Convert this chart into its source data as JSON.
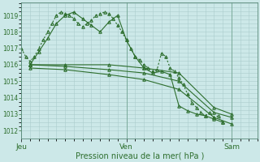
{
  "bg_color": "#cce8e8",
  "grid_color": "#aacccc",
  "line_color": "#2d6e2d",
  "marker_color": "#2d6e2d",
  "xlabel": "Pression niveau de la mer( hPa )",
  "xtick_labels": [
    "Jeu",
    "Ven",
    "Sam"
  ],
  "xtick_positions": [
    0,
    48,
    96
  ],
  "xlim": [
    0,
    108
  ],
  "ylim": [
    1011.5,
    1019.8
  ],
  "yticks": [
    1012,
    1013,
    1014,
    1015,
    1016,
    1017,
    1018,
    1019
  ],
  "series": [
    {
      "x": [
        0,
        2,
        4,
        6,
        8,
        10,
        12,
        14,
        16,
        18,
        20,
        22,
        24,
        26,
        28,
        30,
        32,
        34,
        36,
        38,
        40,
        42,
        44,
        46,
        48,
        50,
        52,
        54,
        56,
        58,
        60,
        62,
        64,
        66,
        68,
        70,
        72,
        74,
        76,
        78,
        80,
        82,
        84,
        86,
        88,
        90,
        92
      ],
      "y": [
        1017.0,
        1016.5,
        1016.2,
        1016.5,
        1017.0,
        1017.5,
        1018.0,
        1018.5,
        1019.0,
        1019.2,
        1019.1,
        1019.0,
        1018.8,
        1018.5,
        1018.3,
        1018.5,
        1018.7,
        1019.0,
        1019.1,
        1019.2,
        1019.1,
        1018.8,
        1018.4,
        1018.0,
        1017.5,
        1017.0,
        1016.5,
        1016.3,
        1016.0,
        1015.8,
        1015.6,
        1015.7,
        1016.7,
        1016.5,
        1015.8,
        1015.6,
        1015.2,
        1014.8,
        1014.2,
        1013.7,
        1013.4,
        1013.1,
        1012.9,
        1013.1,
        1012.8,
        1012.9,
        1012.5
      ],
      "style": "dotted",
      "marker": "^",
      "markersize": 2.5
    },
    {
      "x": [
        4,
        8,
        12,
        16,
        20,
        24,
        28,
        32,
        36,
        40,
        44,
        48,
        52,
        56,
        60,
        64,
        68,
        72,
        76,
        80,
        84,
        88,
        92
      ],
      "y": [
        1016.0,
        1016.8,
        1017.6,
        1018.5,
        1019.0,
        1019.2,
        1018.8,
        1018.4,
        1018.0,
        1018.6,
        1019.0,
        1017.5,
        1016.5,
        1015.8,
        1015.5,
        1015.6,
        1015.4,
        1013.5,
        1013.2,
        1013.0,
        1012.9,
        1012.7,
        1012.5
      ],
      "style": "solid",
      "marker": "^",
      "markersize": 2.5
    },
    {
      "x": [
        4,
        20,
        40,
        56,
        72,
        88,
        96
      ],
      "y": [
        1016.0,
        1016.0,
        1016.0,
        1015.8,
        1015.5,
        1013.4,
        1013.0
      ],
      "style": "solid",
      "marker": "^",
      "markersize": 2.5
    },
    {
      "x": [
        4,
        20,
        40,
        56,
        72,
        88,
        96
      ],
      "y": [
        1016.0,
        1015.9,
        1015.7,
        1015.5,
        1015.0,
        1013.1,
        1012.8
      ],
      "style": "solid",
      "marker": "^",
      "markersize": 2.5
    },
    {
      "x": [
        4,
        20,
        40,
        56,
        72,
        88,
        96
      ],
      "y": [
        1015.8,
        1015.7,
        1015.4,
        1015.1,
        1014.5,
        1012.8,
        1012.4
      ],
      "style": "solid",
      "marker": "^",
      "markersize": 2.5
    }
  ]
}
